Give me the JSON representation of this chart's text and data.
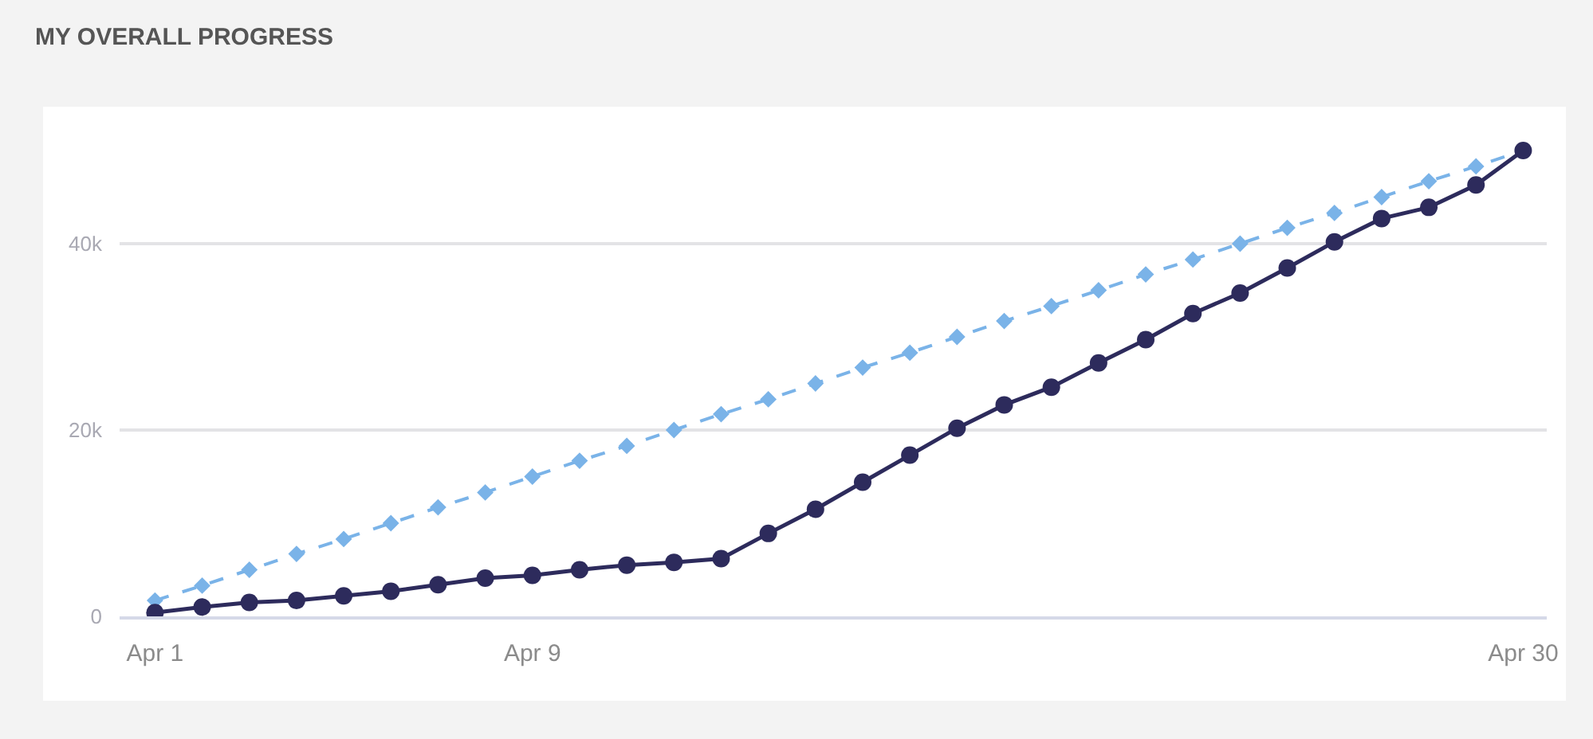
{
  "chart_data": {
    "type": "line",
    "title": "MY OVERALL PROGRESS",
    "x": [
      "--04-01",
      "--04-02",
      "--04-03",
      "--04-04",
      "--04-05",
      "--04-06",
      "--04-07",
      "--04-08",
      "--04-09",
      "--04-10",
      "--04-11",
      "--04-12",
      "--04-13",
      "--04-14",
      "--04-15",
      "--04-16",
      "--04-17",
      "--04-18",
      "--04-19",
      "--04-20",
      "--04-21",
      "--04-22",
      "--04-23",
      "--04-24",
      "--04-25",
      "--04-26",
      "--04-27",
      "--04-28",
      "--04-29",
      "--04-30"
    ],
    "series": [
      {
        "color": "#7ab3e8",
        "marker": "diamond",
        "line_style": "dashed",
        "values": [
          1700,
          3300,
          5000,
          6700,
          8300,
          10000,
          11700,
          13300,
          15000,
          16700,
          18300,
          20000,
          21700,
          23300,
          25000,
          26700,
          28300,
          30000,
          31700,
          33300,
          35000,
          36700,
          38300,
          40000,
          41700,
          43300,
          45000,
          46700,
          48300,
          50000
        ]
      },
      {
        "color": "#2d2b5c",
        "marker": "circle",
        "line_style": "solid",
        "values": [
          400,
          1000,
          1500,
          1700,
          2200,
          2700,
          3400,
          4100,
          4400,
          5000,
          5500,
          5800,
          6200,
          8900,
          11500,
          14400,
          17300,
          20200,
          22700,
          24600,
          27200,
          29700,
          32500,
          34700,
          37400,
          40200,
          42700,
          43900,
          46300,
          50000
        ]
      }
    ],
    "xlim": [
      "--03-31T06:00",
      "--04-30T12:00"
    ],
    "xticks": [
      {
        "value": "--04-01",
        "label": "Apr 1"
      },
      {
        "value": "--04-09",
        "label": "Apr 9"
      },
      {
        "value": "--04-30",
        "label": "Apr 30"
      }
    ],
    "ylim": [
      0,
      54700
    ],
    "yticks": [
      {
        "value": 0,
        "label": "0"
      },
      {
        "value": 20000,
        "label": "20k"
      },
      {
        "value": 40000,
        "label": "40k"
      }
    ],
    "grid": "y"
  }
}
